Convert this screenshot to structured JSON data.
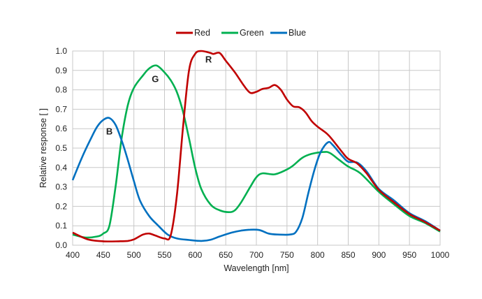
{
  "chart_data": {
    "type": "line",
    "title": "",
    "xlabel": "Wavelength [nm]",
    "ylabel": "Relative response [ ]",
    "xlim": [
      400,
      1000
    ],
    "ylim": [
      0,
      1.0
    ],
    "xticks": [
      400,
      450,
      500,
      550,
      600,
      650,
      700,
      750,
      800,
      850,
      900,
      950,
      1000
    ],
    "yticks": [
      "0.0",
      "0.1",
      "0.2",
      "0.3",
      "0.4",
      "0.5",
      "0.6",
      "0.7",
      "0.8",
      "0.9",
      "1.0"
    ],
    "grid": true,
    "legend_placement": "top-center",
    "series": [
      {
        "name": "Red",
        "color": "#c00000",
        "label": "R",
        "label_at": [
          622,
          0.94
        ],
        "x": [
          400,
          425,
          450,
          475,
          490,
          500,
          515,
          525,
          535,
          550,
          560,
          570,
          580,
          590,
          600,
          610,
          625,
          630,
          640,
          650,
          665,
          680,
          690,
          700,
          710,
          720,
          730,
          740,
          750,
          760,
          770,
          780,
          790,
          800,
          815,
          825,
          840,
          850,
          865,
          880,
          900,
          925,
          950,
          975,
          1000
        ],
        "y": [
          0.065,
          0.03,
          0.02,
          0.02,
          0.022,
          0.03,
          0.055,
          0.06,
          0.05,
          0.035,
          0.05,
          0.25,
          0.6,
          0.9,
          0.985,
          1.0,
          0.99,
          0.985,
          0.99,
          0.95,
          0.89,
          0.82,
          0.785,
          0.79,
          0.805,
          0.81,
          0.825,
          0.8,
          0.75,
          0.715,
          0.71,
          0.685,
          0.64,
          0.61,
          0.575,
          0.54,
          0.48,
          0.445,
          0.42,
          0.37,
          0.285,
          0.22,
          0.16,
          0.12,
          0.075
        ]
      },
      {
        "name": "Green",
        "color": "#00b050",
        "label": "G",
        "label_at": [
          535,
          0.84
        ],
        "x": [
          400,
          420,
          440,
          450,
          460,
          470,
          480,
          490,
          500,
          515,
          525,
          537,
          550,
          560,
          570,
          580,
          590,
          600,
          610,
          625,
          640,
          655,
          665,
          675,
          690,
          700,
          710,
          730,
          750,
          760,
          775,
          790,
          810,
          820,
          835,
          850,
          870,
          900,
          925,
          950,
          975,
          1000
        ],
        "y": [
          0.055,
          0.04,
          0.045,
          0.06,
          0.1,
          0.3,
          0.55,
          0.72,
          0.81,
          0.875,
          0.91,
          0.925,
          0.89,
          0.85,
          0.79,
          0.69,
          0.55,
          0.4,
          0.29,
          0.21,
          0.18,
          0.17,
          0.18,
          0.22,
          0.3,
          0.35,
          0.37,
          0.365,
          0.39,
          0.41,
          0.45,
          0.47,
          0.48,
          0.475,
          0.44,
          0.405,
          0.37,
          0.275,
          0.21,
          0.15,
          0.115,
          0.07
        ]
      },
      {
        "name": "Blue",
        "color": "#0070c0",
        "label": "B",
        "label_at": [
          460,
          0.57
        ],
        "x": [
          400,
          415,
          430,
          440,
          450,
          460,
          470,
          480,
          490,
          500,
          510,
          525,
          540,
          555,
          570,
          590,
          610,
          625,
          640,
          660,
          675,
          690,
          705,
          720,
          735,
          755,
          765,
          775,
          785,
          795,
          805,
          817,
          825,
          840,
          850,
          865,
          880,
          900,
          925,
          950,
          975,
          1000
        ],
        "y": [
          0.335,
          0.45,
          0.55,
          0.61,
          0.645,
          0.655,
          0.62,
          0.54,
          0.44,
          0.33,
          0.23,
          0.15,
          0.1,
          0.055,
          0.035,
          0.027,
          0.022,
          0.028,
          0.045,
          0.065,
          0.075,
          0.08,
          0.078,
          0.06,
          0.055,
          0.055,
          0.07,
          0.14,
          0.27,
          0.39,
          0.48,
          0.53,
          0.515,
          0.46,
          0.43,
          0.425,
          0.38,
          0.29,
          0.23,
          0.165,
          0.125,
          0.075
        ]
      }
    ]
  }
}
